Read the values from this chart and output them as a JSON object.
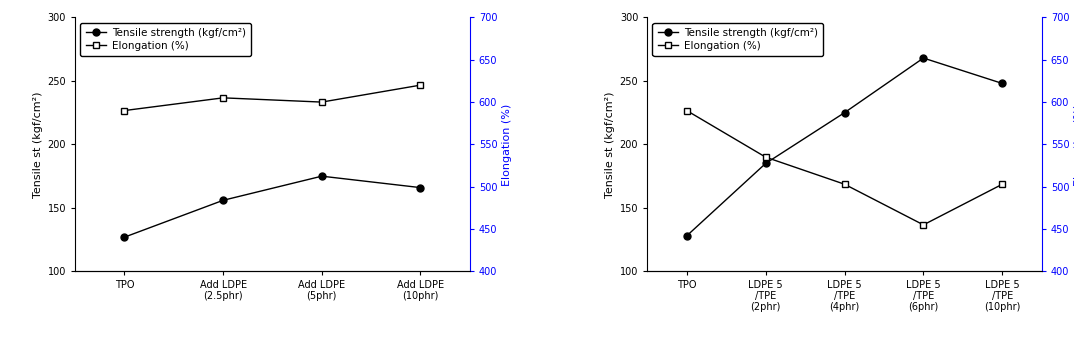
{
  "chart1": {
    "x_labels": [
      "TPO",
      "Add LDPE\n(2.5phr)",
      "Add LDPE\n(5phr)",
      "Add LDPE\n(10phr)"
    ],
    "tensile": [
      127,
      156,
      175,
      166
    ],
    "elongation": [
      590,
      605,
      600,
      620
    ],
    "ylim_left": [
      100,
      300
    ],
    "ylim_right": [
      400,
      700
    ],
    "ylabel_left": "Tensile st (kgf/cm²)",
    "ylabel_right": "Elongation (%)",
    "legend_tensile": "Tensile strength (kgf/cm²)",
    "legend_elongation": "Elongation (%)"
  },
  "chart2": {
    "x_labels": [
      "TPO",
      "LDPE 5\n/TPE\n(2phr)",
      "LDPE 5\n/TPE\n(4phr)",
      "LDPE 5\n/TPE\n(6phr)",
      "LDPE 5\n/TPE\n(10phr)"
    ],
    "tensile": [
      128,
      185,
      225,
      268,
      248
    ],
    "elongation": [
      590,
      535,
      503,
      455,
      503
    ],
    "ylim_left": [
      100,
      300
    ],
    "ylim_right": [
      400,
      700
    ],
    "ylabel_left": "Tensile st (kgf/cm²)",
    "ylabel_right": "Elongation (%)",
    "legend_tensile": "Tensile strength (kgf/cm²)",
    "legend_elongation": "Elongation (%)"
  },
  "yticks_left": [
    100,
    150,
    200,
    250,
    300
  ],
  "yticks_right": [
    400,
    450,
    500,
    550,
    600,
    650,
    700
  ],
  "tensile_color": "#000000",
  "elongation_color": "#000000",
  "fontsize_label": 8,
  "fontsize_tick": 7,
  "fontsize_legend": 7.5,
  "right_axis_color": "blue"
}
